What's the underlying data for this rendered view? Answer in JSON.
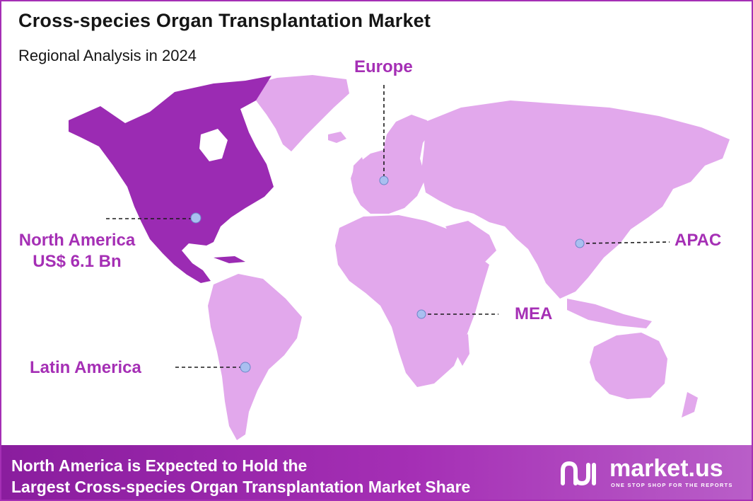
{
  "header": {
    "title": "Cross-species Organ Transplantation Market",
    "subtitle": "Regional Analysis in 2024"
  },
  "regions": {
    "europe": {
      "label": "Europe"
    },
    "north_america": {
      "label": "North America",
      "value": "US$ 6.1 Bn",
      "highlighted": true
    },
    "apac": {
      "label": "APAC"
    },
    "mea": {
      "label": "MEA"
    },
    "latin_america": {
      "label": "Latin America"
    }
  },
  "footer": {
    "line1": "North America is Expected to Hold the",
    "line2": "Largest Cross-species Organ Transplantation Market Share"
  },
  "brand": {
    "name": "market.us",
    "tagline": "ONE STOP SHOP FOR THE REPORTS"
  },
  "colors": {
    "accent": "#a52fb5",
    "highlight_region": "#9b2bb3",
    "other_regions": "#e2a8ec",
    "marker": "#a9bff0"
  }
}
